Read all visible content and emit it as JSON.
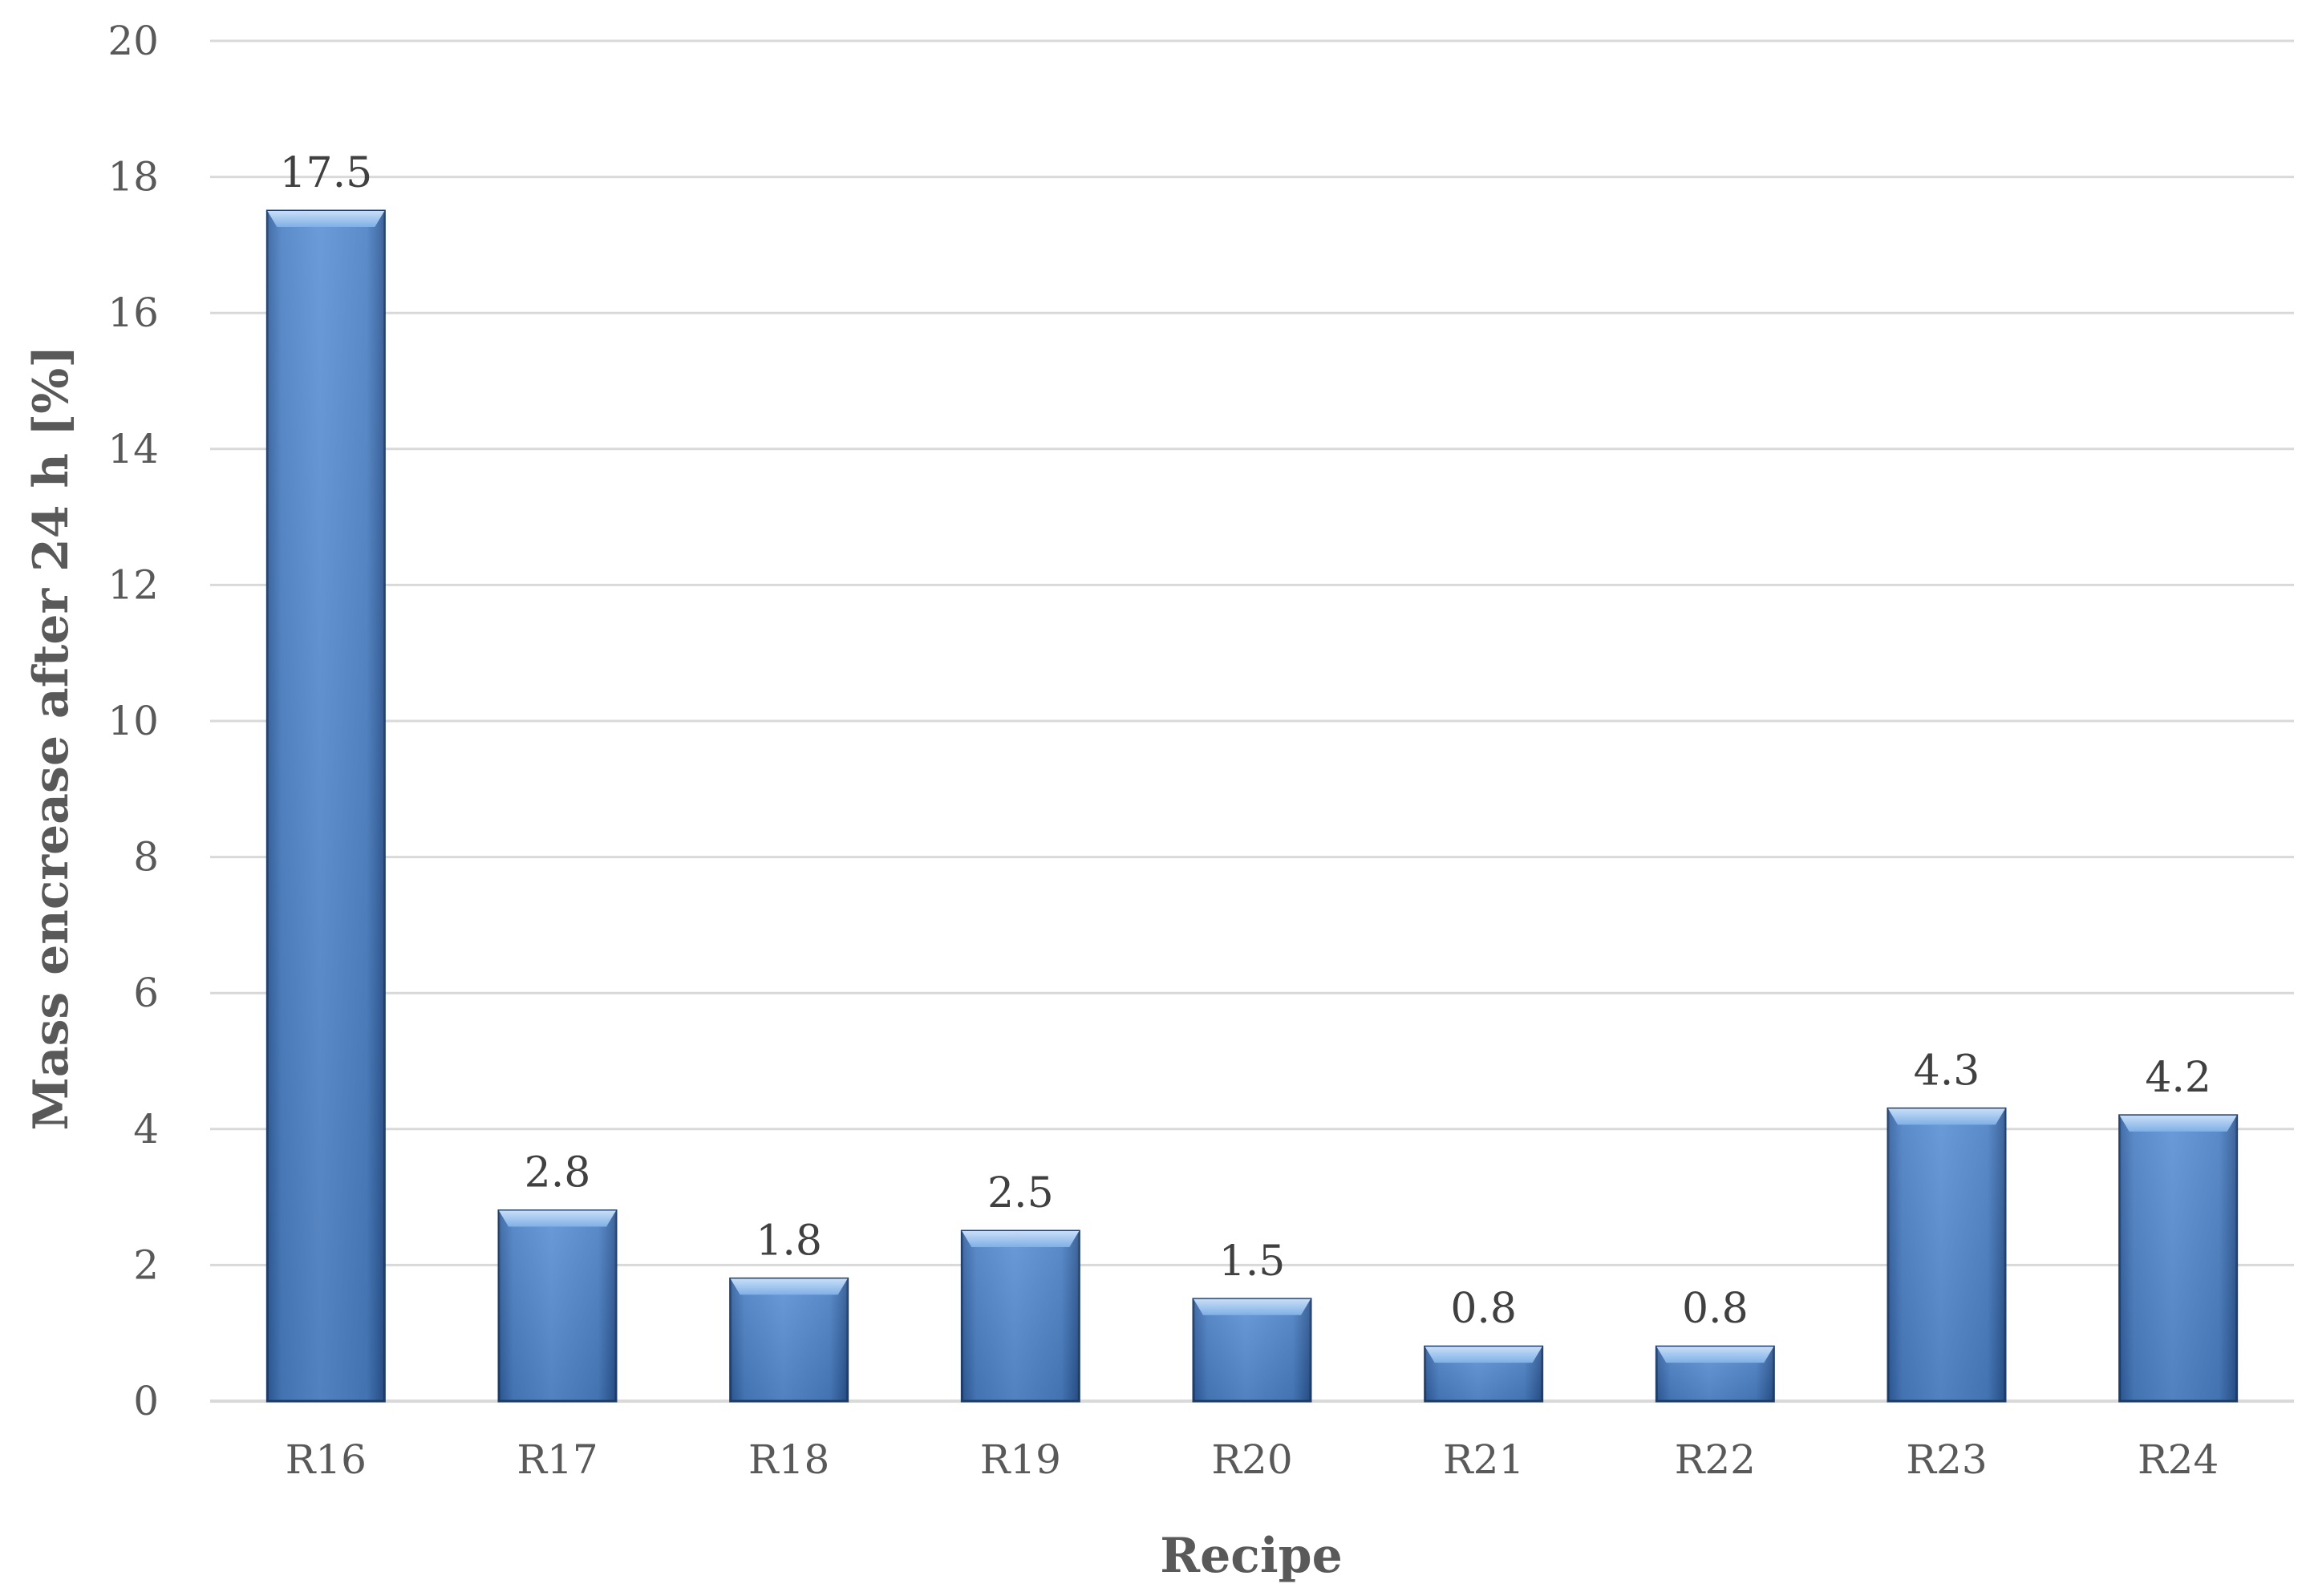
{
  "chart_data": {
    "type": "bar",
    "categories": [
      "R16",
      "R17",
      "R18",
      "R19",
      "R20",
      "R21",
      "R22",
      "R23",
      "R24"
    ],
    "values": [
      17.5,
      2.8,
      1.8,
      2.5,
      1.5,
      0.8,
      0.8,
      4.3,
      4.2
    ],
    "data_labels": [
      "17.5",
      "2.8",
      "1.8",
      "2.5",
      "1.5",
      "0.8",
      "0.8",
      "4.3",
      "4.2"
    ],
    "title": "",
    "xlabel": "Recipe",
    "ylabel": "Mass encrease after 24 h [%]",
    "ylim": [
      0,
      20
    ],
    "yticks": [
      "0",
      "2",
      "4",
      "6",
      "8",
      "10",
      "12",
      "14",
      "16",
      "18",
      "20"
    ],
    "grid": true,
    "legend": "none",
    "colors": {
      "bar_light": "#7ba7dc",
      "bar_mid": "#4a7fc4",
      "bar_dark": "#2f5e9e",
      "bar_edge": "#1f3f6e",
      "bar_top": "#a9cbf2",
      "gridline": "#d9d9d9"
    }
  }
}
